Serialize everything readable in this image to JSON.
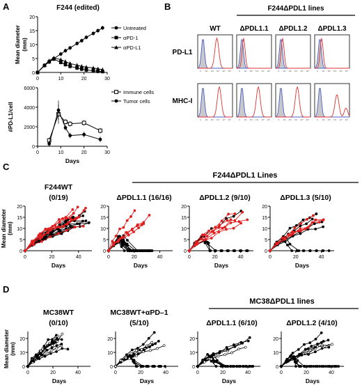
{
  "panels": {
    "A": "A",
    "B": "B",
    "C": "C",
    "D": "D"
  },
  "chart_data": [
    {
      "id": "A-top",
      "type": "line",
      "title": "F244 (edited)",
      "xlabel": "",
      "ylabel": "Mean diameter (mm)",
      "ylim": [
        0,
        20
      ],
      "xlim": [
        0,
        30
      ],
      "yticks": [
        0,
        5,
        10,
        15,
        20
      ],
      "xticks": [
        0,
        10,
        20,
        30
      ],
      "legend_position": "right",
      "series": [
        {
          "name": "Untreated",
          "marker": "circle",
          "x": [
            0,
            3,
            5,
            7,
            10,
            12,
            14,
            17,
            19,
            21,
            24,
            26,
            28
          ],
          "y": [
            0,
            2.5,
            3.8,
            5.0,
            6.6,
            7.8,
            8.8,
            10.4,
            11.4,
            12.6,
            14.0,
            15.0,
            16.0
          ]
        },
        {
          "name": "αPD-1",
          "marker": "square",
          "x": [
            0,
            3,
            5,
            7,
            10,
            12,
            14,
            17,
            19,
            21,
            24,
            26,
            28
          ],
          "y": [
            0,
            2.5,
            3.8,
            4.8,
            3.6,
            2.8,
            2.2,
            1.6,
            1.2,
            0.9,
            0.6,
            0.4,
            0.3
          ]
        },
        {
          "name": "αPD-L1",
          "marker": "triangle",
          "x": [
            0,
            3,
            5,
            7,
            10,
            12,
            14,
            17,
            19,
            21,
            24,
            26,
            28
          ],
          "y": [
            0,
            2.7,
            4.2,
            5.2,
            4.6,
            3.9,
            3.2,
            2.6,
            2.2,
            1.9,
            1.6,
            1.3,
            1.0
          ]
        }
      ]
    },
    {
      "id": "A-bottom",
      "type": "line",
      "title": "",
      "xlabel": "Days",
      "ylabel": "#PD-L1/cell",
      "ylim": [
        0,
        6000
      ],
      "xlim": [
        0,
        30
      ],
      "yticks": [
        0,
        2000,
        4000,
        6000
      ],
      "xticks": [
        0,
        10,
        20,
        30
      ],
      "legend_position": "right",
      "series": [
        {
          "name": "Immune cells",
          "marker": "open-square",
          "x": [
            5,
            9,
            12,
            14,
            20,
            27
          ],
          "y": [
            600,
            3300,
            2500,
            2300,
            2400,
            1600
          ]
        },
        {
          "name": "Tumor cells",
          "marker": "circle",
          "x": [
            5,
            9,
            12,
            14,
            20,
            27
          ],
          "y": [
            250,
            3700,
            1900,
            1100,
            1200,
            700
          ]
        }
      ]
    },
    {
      "id": "B",
      "type": "histogram-grid",
      "header": "F244ΔPDL1 lines",
      "columns": [
        "WT",
        "ΔPDL1.1",
        "ΔPDL1.2",
        "ΔPDL1.3"
      ],
      "rows": [
        "PD-L1",
        "MHC-I"
      ],
      "xticks": [
        "0",
        "10¹",
        "10²",
        "10³",
        "10⁴",
        "10⁵"
      ],
      "colors": {
        "isotype": "#4a5fc4",
        "stain": "#e03030",
        "fill": "#c8c8cc"
      },
      "cells": [
        {
          "row": "PD-L1",
          "col": "WT",
          "stain_peak": 0.55
        },
        {
          "row": "PD-L1",
          "col": "ΔPDL1.1",
          "stain_peak": 0.2
        },
        {
          "row": "PD-L1",
          "col": "ΔPDL1.2",
          "stain_peak": 0.2
        },
        {
          "row": "PD-L1",
          "col": "ΔPDL1.3",
          "stain_peak": 0.2
        },
        {
          "row": "MHC-I",
          "col": "WT",
          "stain_peak": 0.62
        },
        {
          "row": "MHC-I",
          "col": "ΔPDL1.1",
          "stain_peak": 0.62
        },
        {
          "row": "MHC-I",
          "col": "ΔPDL1.2",
          "stain_peak": 0.62
        },
        {
          "row": "MHC-I",
          "col": "ΔPDL1.3",
          "stain_peak": 0.64
        }
      ]
    },
    {
      "id": "C",
      "type": "line",
      "group_header": "F244ΔPDL1 Lines",
      "xlabel": "Days",
      "ylabel": "Mean diameter (mm)",
      "subplots": [
        {
          "title": "F244WT",
          "subtitle": "(0/19)",
          "xlim": [
            0,
            50
          ],
          "ylim": [
            0,
            20
          ],
          "xticks": [
            0,
            20,
            40
          ],
          "yticks": [
            0,
            5,
            10,
            15,
            20
          ],
          "black_growing": 12,
          "red_growing": 7,
          "regressing": 0,
          "end_day": 48
        },
        {
          "title": "ΔPDL1.1 (16/16)",
          "subtitle": "",
          "xlim": [
            0,
            50
          ],
          "ylim": [
            0,
            20
          ],
          "xticks": [
            0,
            20,
            40
          ],
          "yticks": [
            0,
            5,
            10,
            15,
            20
          ],
          "black_growing": 0,
          "red_growing": 4,
          "regressing": 12,
          "end_day": 34
        },
        {
          "title": "ΔPDL1.2 (9/10)",
          "subtitle": "",
          "xlim": [
            0,
            50
          ],
          "ylim": [
            0,
            20
          ],
          "xticks": [
            0,
            20,
            40
          ],
          "yticks": [
            0,
            5,
            10,
            15,
            20
          ],
          "black_growing": 1,
          "red_growing": 5,
          "regressing": 4,
          "end_day": 46
        },
        {
          "title": "ΔPDL1.3 (5/10)",
          "subtitle": "",
          "xlim": [
            0,
            50
          ],
          "ylim": [
            0,
            20
          ],
          "xticks": [
            0,
            20,
            40
          ],
          "yticks": [
            0,
            5,
            10,
            15,
            20
          ],
          "black_growing": 4,
          "red_growing": 4,
          "regressing": 2,
          "end_day": 46
        }
      ]
    },
    {
      "id": "D",
      "type": "line",
      "group_header": "MC38ΔPDL1 lines",
      "xlabel": "Days",
      "ylabel": "Mean diameter (mm)",
      "subplots": [
        {
          "title": "MC38WT",
          "subtitle": "(0/10)",
          "xlim": [
            0,
            50
          ],
          "ylim": [
            0,
            25
          ],
          "xticks": [
            0,
            20,
            40
          ],
          "yticks": [
            0,
            10,
            20
          ],
          "black_growing": 10,
          "red_growing": 0,
          "regressing": 0,
          "end_day": 33
        },
        {
          "title": "MC38WT+αPD–1",
          "subtitle": "(5/10)",
          "xlim": [
            0,
            50
          ],
          "ylim": [
            0,
            25
          ],
          "xticks": [
            0,
            20,
            40
          ],
          "yticks": [
            0,
            10,
            20
          ],
          "black_growing": 5,
          "red_growing": 0,
          "regressing": 5,
          "end_day": 40
        },
        {
          "title": "ΔPDL1.1 (6/10)",
          "subtitle": "",
          "xlim": [
            0,
            50
          ],
          "ylim": [
            0,
            25
          ],
          "xticks": [
            0,
            20,
            40
          ],
          "yticks": [
            0,
            10,
            20
          ],
          "black_growing": 4,
          "red_growing": 0,
          "regressing": 6,
          "end_day": 46
        },
        {
          "title": "ΔPDL1.2 (4/10)",
          "subtitle": "",
          "xlim": [
            0,
            50
          ],
          "ylim": [
            0,
            25
          ],
          "xticks": [
            0,
            20,
            40
          ],
          "yticks": [
            0,
            10,
            20
          ],
          "black_growing": 6,
          "red_growing": 0,
          "regressing": 4,
          "end_day": 46
        }
      ]
    }
  ]
}
